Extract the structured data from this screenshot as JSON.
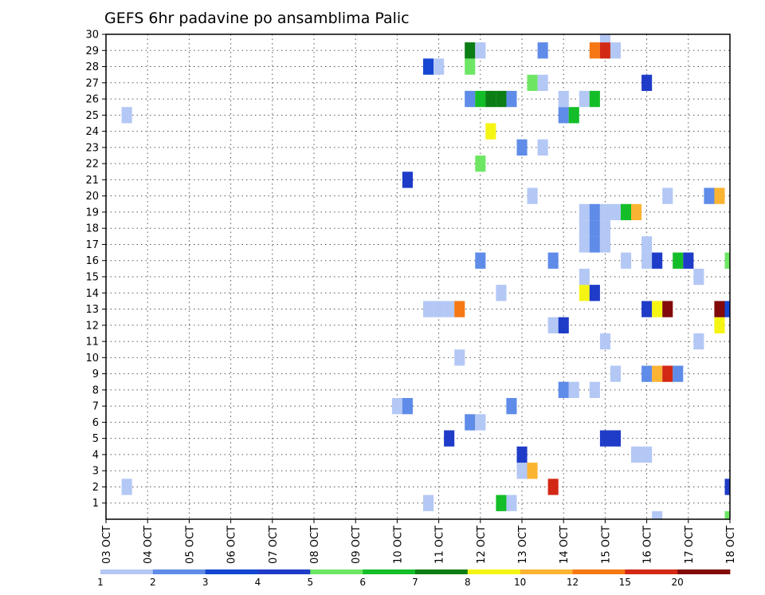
{
  "chart_data": {
    "type": "heatmap",
    "title": "GEFS 6hr padavine po ansamblima Palic",
    "xlabel": "",
    "ylabel": "",
    "x_ticks": [
      "03 OCT",
      "04 OCT",
      "05 OCT",
      "06 OCT",
      "07 OCT",
      "08 OCT",
      "09 OCT",
      "10 OCT",
      "11 OCT",
      "12 OCT",
      "13 OCT",
      "14 OCT",
      "15 OCT",
      "16 OCT",
      "17 OCT",
      "18 OCT"
    ],
    "y_ticks": [
      "1",
      "2",
      "3",
      "4",
      "5",
      "6",
      "7",
      "8",
      "9",
      "10",
      "11",
      "12",
      "13",
      "14",
      "15",
      "16",
      "17",
      "18",
      "19",
      "20",
      "21",
      "22",
      "23",
      "24",
      "25",
      "26",
      "27",
      "28",
      "29",
      "30"
    ],
    "xlim_days": [
      0,
      15
    ],
    "ylim": [
      0,
      30
    ],
    "grid": true,
    "colorbar": {
      "labels": [
        "1",
        "2",
        "3",
        "4",
        "5",
        "6",
        "7",
        "8",
        "10",
        "12",
        "15",
        "20"
      ],
      "colors": [
        "#b4c8f5",
        "#5f8ce8",
        "#1446d2",
        "#1e3cc8",
        "#6ee664",
        "#14be28",
        "#0a7d14",
        "#f5f514",
        "#fab432",
        "#f57814",
        "#d22814",
        "#820a0a"
      ]
    },
    "cells": [
      {
        "day": 0.5,
        "member": 2,
        "value": 1
      },
      {
        "day": 0.5,
        "member": 25,
        "value": 1
      },
      {
        "day": 7.0,
        "member": 7,
        "value": 1
      },
      {
        "day": 7.25,
        "member": 7,
        "value": 2
      },
      {
        "day": 7.25,
        "member": 21,
        "value": 4
      },
      {
        "day": 7.75,
        "member": 1,
        "value": 1
      },
      {
        "day": 7.75,
        "member": 13,
        "value": 1
      },
      {
        "day": 8.0,
        "member": 13,
        "value": 1
      },
      {
        "day": 8.25,
        "member": 13,
        "value": 1
      },
      {
        "day": 7.75,
        "member": 28,
        "value": 3
      },
      {
        "day": 8.0,
        "member": 28,
        "value": 1
      },
      {
        "day": 8.25,
        "member": 5,
        "value": 4
      },
      {
        "day": 8.5,
        "member": 10,
        "value": 1
      },
      {
        "day": 8.5,
        "member": 13,
        "value": 12
      },
      {
        "day": 8.75,
        "member": 6,
        "value": 2
      },
      {
        "day": 9.0,
        "member": 6,
        "value": 1
      },
      {
        "day": 8.75,
        "member": 26,
        "value": 2
      },
      {
        "day": 8.75,
        "member": 28,
        "value": 5
      },
      {
        "day": 8.75,
        "member": 29,
        "value": 7
      },
      {
        "day": 9.0,
        "member": 16,
        "value": 2
      },
      {
        "day": 9.0,
        "member": 22,
        "value": 5
      },
      {
        "day": 9.0,
        "member": 26,
        "value": 6
      },
      {
        "day": 9.0,
        "member": 29,
        "value": 1
      },
      {
        "day": 9.25,
        "member": 24,
        "value": 8
      },
      {
        "day": 9.25,
        "member": 26,
        "value": 7
      },
      {
        "day": 9.5,
        "member": 26,
        "value": 7
      },
      {
        "day": 9.5,
        "member": 1,
        "value": 6
      },
      {
        "day": 9.5,
        "member": 14,
        "value": 1
      },
      {
        "day": 9.75,
        "member": 1,
        "value": 1
      },
      {
        "day": 9.75,
        "member": 7,
        "value": 2
      },
      {
        "day": 9.75,
        "member": 26,
        "value": 2
      },
      {
        "day": 10.0,
        "member": 3,
        "value": 1
      },
      {
        "day": 10.0,
        "member": 4,
        "value": 4
      },
      {
        "day": 10.0,
        "member": 23,
        "value": 2
      },
      {
        "day": 10.25,
        "member": 3,
        "value": 10
      },
      {
        "day": 10.25,
        "member": 20,
        "value": 1
      },
      {
        "day": 10.25,
        "member": 27,
        "value": 5
      },
      {
        "day": 10.5,
        "member": 23,
        "value": 1
      },
      {
        "day": 10.5,
        "member": 27,
        "value": 1
      },
      {
        "day": 10.5,
        "member": 29,
        "value": 2
      },
      {
        "day": 10.75,
        "member": 2,
        "value": 15
      },
      {
        "day": 10.75,
        "member": 12,
        "value": 1
      },
      {
        "day": 10.75,
        "member": 16,
        "value": 2
      },
      {
        "day": 11.0,
        "member": 8,
        "value": 2
      },
      {
        "day": 11.0,
        "member": 12,
        "value": 4
      },
      {
        "day": 11.0,
        "member": 25,
        "value": 2
      },
      {
        "day": 11.0,
        "member": 26,
        "value": 1
      },
      {
        "day": 11.25,
        "member": 8,
        "value": 1
      },
      {
        "day": 11.25,
        "member": 25,
        "value": 6
      },
      {
        "day": 11.5,
        "member": 14,
        "value": 8
      },
      {
        "day": 11.5,
        "member": 15,
        "value": 1
      },
      {
        "day": 11.5,
        "member": 17,
        "value": 1
      },
      {
        "day": 11.5,
        "member": 18,
        "value": 1
      },
      {
        "day": 11.5,
        "member": 19,
        "value": 1
      },
      {
        "day": 11.5,
        "member": 26,
        "value": 1
      },
      {
        "day": 11.75,
        "member": 8,
        "value": 1
      },
      {
        "day": 11.75,
        "member": 14,
        "value": 4
      },
      {
        "day": 11.75,
        "member": 17,
        "value": 2
      },
      {
        "day": 11.75,
        "member": 18,
        "value": 2
      },
      {
        "day": 11.75,
        "member": 19,
        "value": 2
      },
      {
        "day": 11.75,
        "member": 26,
        "value": 6
      },
      {
        "day": 11.75,
        "member": 29,
        "value": 12
      },
      {
        "day": 12.0,
        "member": 5,
        "value": 4
      },
      {
        "day": 12.0,
        "member": 11,
        "value": 1
      },
      {
        "day": 12.0,
        "member": 17,
        "value": 1
      },
      {
        "day": 12.0,
        "member": 18,
        "value": 1
      },
      {
        "day": 12.0,
        "member": 19,
        "value": 1
      },
      {
        "day": 12.0,
        "member": 29,
        "value": 15
      },
      {
        "day": 12.0,
        "member": 30,
        "value": 1
      },
      {
        "day": 12.25,
        "member": 5,
        "value": 4
      },
      {
        "day": 12.25,
        "member": 9,
        "value": 1
      },
      {
        "day": 12.25,
        "member": 19,
        "value": 1
      },
      {
        "day": 12.25,
        "member": 29,
        "value": 1
      },
      {
        "day": 12.5,
        "member": 16,
        "value": 1
      },
      {
        "day": 12.5,
        "member": 19,
        "value": 6
      },
      {
        "day": 12.75,
        "member": 4,
        "value": 1
      },
      {
        "day": 12.75,
        "member": 19,
        "value": 10
      },
      {
        "day": 13.0,
        "member": 4,
        "value": 1
      },
      {
        "day": 13.0,
        "member": 9,
        "value": 2
      },
      {
        "day": 13.0,
        "member": 13,
        "value": 4
      },
      {
        "day": 13.0,
        "member": 16,
        "value": 1
      },
      {
        "day": 13.0,
        "member": 17,
        "value": 1
      },
      {
        "day": 13.0,
        "member": 27,
        "value": 4
      },
      {
        "day": 13.25,
        "member": 9,
        "value": 10
      },
      {
        "day": 13.25,
        "member": 13,
        "value": 8
      },
      {
        "day": 13.25,
        "member": 16,
        "value": 4
      },
      {
        "day": 13.25,
        "member": 0,
        "value": 1
      },
      {
        "day": 13.5,
        "member": 9,
        "value": 15
      },
      {
        "day": 13.5,
        "member": 13,
        "value": 20
      },
      {
        "day": 13.5,
        "member": 20,
        "value": 1
      },
      {
        "day": 13.75,
        "member": 9,
        "value": 2
      },
      {
        "day": 13.75,
        "member": 16,
        "value": 6
      },
      {
        "day": 14.0,
        "member": 16,
        "value": 4
      },
      {
        "day": 14.25,
        "member": 11,
        "value": 1
      },
      {
        "day": 14.25,
        "member": 15,
        "value": 1
      },
      {
        "day": 14.5,
        "member": 20,
        "value": 2
      },
      {
        "day": 14.75,
        "member": 12,
        "value": 8
      },
      {
        "day": 14.75,
        "member": 13,
        "value": 20
      },
      {
        "day": 14.75,
        "member": 20,
        "value": 10
      },
      {
        "day": 15.0,
        "member": 13,
        "value": 3
      },
      {
        "day": 15.0,
        "member": 16,
        "value": 5
      },
      {
        "day": 15.0,
        "member": 2,
        "value": 4
      },
      {
        "day": 15.0,
        "member": 0,
        "value": 5
      }
    ]
  }
}
